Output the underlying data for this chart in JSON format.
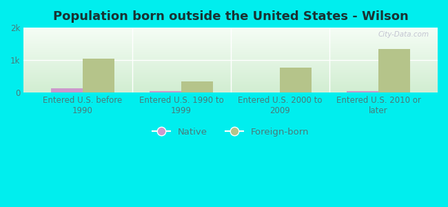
{
  "title": "Population born outside the United States - Wilson",
  "categories": [
    "Entered U.S. before\n1990",
    "Entered U.S. 1990 to\n1999",
    "Entered U.S. 2000 to\n2009",
    "Entered U.S. 2010 or\nlater"
  ],
  "native_values": [
    120,
    30,
    0,
    40
  ],
  "foreign_values": [
    1050,
    330,
    770,
    1350
  ],
  "native_color": "#cc99cc",
  "foreign_color": "#b5c48a",
  "background_outer": "#00eeee",
  "ylim": [
    0,
    2000
  ],
  "ytick_labels": [
    "0",
    "1k",
    "2k"
  ],
  "bar_width": 0.32,
  "title_fontsize": 13,
  "tick_fontsize": 8.5,
  "legend_fontsize": 9.5,
  "watermark_text": "City-Data.com",
  "grid_color": "#ffffff",
  "axis_label_color": "#4a7a7a",
  "title_color": "#1a3333"
}
